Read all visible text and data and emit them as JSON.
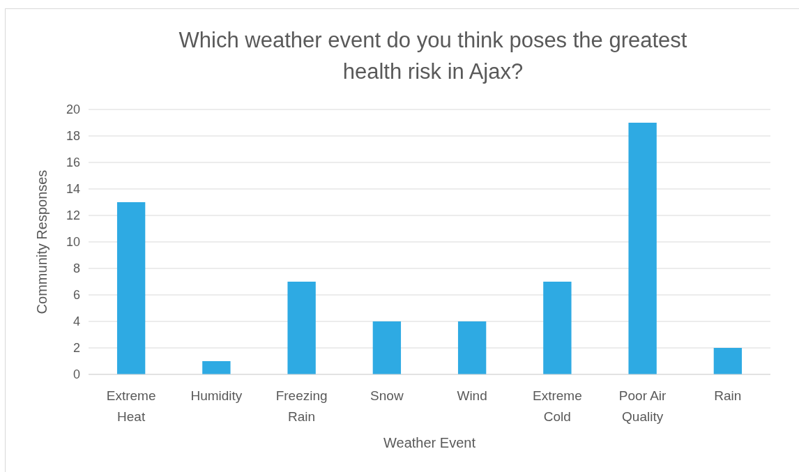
{
  "chart_data": {
    "type": "bar",
    "title": "Which weather event do you think poses the greatest health risk in Ajax?",
    "xlabel": "Weather Event",
    "ylabel": "Community Responses",
    "categories": [
      "Extreme Heat",
      "Humidity",
      "Freezing Rain",
      "Snow",
      "Wind",
      "Extreme Cold",
      "Poor Air Quality",
      "Rain"
    ],
    "values": [
      13,
      1,
      7,
      4,
      4,
      7,
      19,
      2
    ],
    "color": "#2eaae3",
    "ylim": [
      0,
      20
    ],
    "yticks": [
      0,
      2,
      4,
      6,
      8,
      10,
      12,
      14,
      16,
      18,
      20
    ],
    "grid": "y"
  }
}
